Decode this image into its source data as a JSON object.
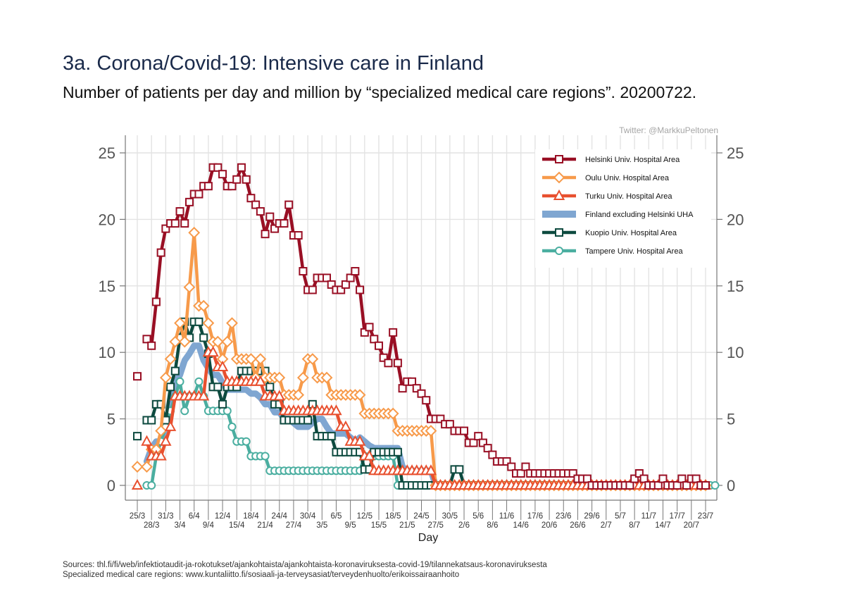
{
  "title": "3a. Corona/Covid-19: Intensive care in Finland",
  "subtitle": "Number of patients per day and million by “specialized medical care regions”. 20200722.",
  "credit": "Twitter: @MarkkuPeltonen",
  "sources": [
    "Sources: thl.fi/fi/web/infektiotaudit-ja-rokotukset/ajankohtaista/ajankohtaista-koronaviruksesta-covid-19/tilannekatsaus-koronaviruksesta",
    "Specialized medical care regions: www.kuntaliitto.fi/sosiaali-ja-terveysasiat/terveydenhuolto/erikoissairaanhoito"
  ],
  "chart_data": {
    "type": "line",
    "title": "3a. Corona/Covid-19: Intensive care in Finland",
    "xlabel": "Day",
    "ylabel": "",
    "ylim": [
      0,
      25
    ],
    "yticks": [
      0,
      5,
      10,
      15,
      20,
      25
    ],
    "grid": true,
    "legend_position": "top-right",
    "x_start": "25/3",
    "num_days": 121,
    "xtick_labels_upper": [
      "25/3",
      "31/3",
      "6/4",
      "12/4",
      "18/4",
      "24/4",
      "30/4",
      "6/5",
      "12/5",
      "18/5",
      "24/5",
      "30/5",
      "5/6",
      "11/6",
      "17/6",
      "23/6",
      "29/6",
      "5/7",
      "11/7",
      "17/7",
      "23/7"
    ],
    "xtick_labels_lower": [
      "28/3",
      "3/4",
      "9/4",
      "15/4",
      "21/4",
      "27/4",
      "3/5",
      "9/5",
      "15/5",
      "21/5",
      "27/5",
      "2/6",
      "8/6",
      "14/6",
      "20/6",
      "26/6",
      "2/7",
      "8/7",
      "14/7",
      "20/7"
    ],
    "series": [
      {
        "name": "Helsinki Univ. Hospital Area",
        "color": "#990f24",
        "marker": "square",
        "values": [
          8.2,
          null,
          11,
          10.5,
          13.8,
          17.5,
          19.3,
          19.7,
          19.7,
          20.6,
          19.7,
          21.3,
          21.9,
          21.9,
          22.5,
          22.5,
          23.9,
          23.9,
          23.4,
          22.5,
          22.5,
          23.0,
          23.9,
          23.0,
          21.6,
          21.1,
          20.6,
          18.9,
          20.2,
          19.3,
          19.7,
          19.7,
          21.1,
          18.8,
          18.8,
          16.1,
          14.7,
          14.7,
          15.6,
          15.6,
          15.6,
          15.1,
          14.7,
          14.7,
          15.1,
          15.6,
          16.1,
          14.7,
          11.5,
          11.9,
          11.0,
          10.5,
          9.6,
          9.2,
          11.5,
          9.2,
          7.3,
          7.8,
          7.8,
          7.3,
          6.9,
          6.4,
          5.0,
          5.0,
          5.0,
          4.6,
          4.6,
          4.1,
          4.1,
          4.1,
          3.2,
          3.2,
          3.7,
          3.2,
          2.8,
          2.3,
          1.8,
          1.8,
          1.8,
          1.4,
          0.9,
          0.9,
          1.4,
          0.9,
          0.9,
          0.9,
          0.9,
          0.9,
          0.9,
          0.9,
          0.9,
          0.9,
          0.9,
          0.5,
          0.5,
          0.5,
          0.0,
          0.0,
          0.0,
          0.0,
          0.0,
          0.0,
          0.0,
          0.0,
          0.0,
          0.5,
          0.9,
          0.5,
          0.0,
          0.0,
          0.0,
          0.5,
          0.0,
          0.0,
          0.0,
          0.5,
          0.0,
          0.5,
          0.5,
          0.0,
          0.0
        ]
      },
      {
        "name": "Oulu Univ. Hospital Area",
        "color": "#f79a4a",
        "marker": "diamond",
        "values": [
          1.4,
          null,
          1.4,
          2.7,
          2.7,
          4.1,
          8.1,
          9.5,
          10.8,
          12.2,
          10.8,
          14.9,
          19.0,
          13.5,
          13.5,
          12.2,
          10.8,
          10.8,
          9.5,
          10.8,
          12.2,
          9.5,
          9.5,
          9.5,
          9.5,
          8.1,
          9.5,
          8.1,
          8.1,
          8.1,
          8.1,
          6.8,
          6.8,
          6.8,
          6.8,
          8.1,
          9.5,
          9.5,
          8.1,
          8.1,
          8.1,
          6.8,
          6.8,
          6.8,
          6.8,
          6.8,
          6.8,
          6.8,
          5.4,
          5.4,
          5.4,
          5.4,
          5.4,
          5.4,
          5.4,
          4.1,
          4.1,
          4.1,
          4.1,
          4.1,
          4.1,
          4.1,
          4.1,
          0.0,
          0.0,
          0.0,
          0.0,
          0.0,
          0.0,
          0.0,
          0.0,
          0.0,
          0.0,
          0.0,
          0.0,
          0.0,
          0.0,
          0.0,
          0.0,
          0.0,
          0.0,
          0.0,
          0.0,
          0.0,
          0.0,
          0.0,
          0.0,
          0.0,
          0.0,
          0.0,
          0.0,
          0.0,
          0.0,
          0.0,
          0.0,
          0.0,
          0.0,
          0.0,
          0.0,
          0.0,
          0.0,
          0.0,
          0.0,
          0.0,
          0.0,
          0.0,
          0.0,
          0.0,
          0.0,
          0.0,
          0.0,
          0.0,
          0.0,
          0.0,
          0.0,
          0.0,
          0.0,
          0.0,
          0.0,
          0.0,
          0.0
        ]
      },
      {
        "name": "Turku Univ. Hospital Area",
        "color": "#e8502f",
        "marker": "triangle",
        "values": [
          0.0,
          null,
          3.3,
          2.2,
          2.2,
          2.2,
          3.3,
          4.4,
          6.7,
          6.7,
          6.7,
          6.7,
          6.7,
          6.7,
          6.7,
          10.0,
          10.0,
          8.9,
          8.9,
          7.8,
          7.8,
          7.8,
          7.8,
          7.8,
          7.8,
          7.8,
          7.8,
          6.7,
          6.7,
          6.7,
          6.7,
          5.6,
          5.6,
          5.6,
          5.6,
          5.6,
          5.6,
          5.6,
          5.6,
          5.6,
          5.6,
          5.6,
          5.6,
          4.4,
          4.4,
          3.3,
          3.3,
          3.3,
          2.2,
          2.2,
          1.1,
          1.1,
          1.1,
          1.1,
          1.1,
          1.1,
          1.1,
          1.1,
          1.1,
          1.1,
          1.1,
          1.1,
          1.1,
          0.0,
          0.0,
          0.0,
          0.0,
          0.0,
          0.0,
          0.0,
          0.0,
          0.0,
          0.0,
          0.0,
          0.0,
          0.0,
          0.0,
          0.0,
          0.0,
          0.0,
          0.0,
          0.0,
          0.0,
          0.0,
          0.0,
          0.0,
          0.0,
          0.0,
          0.0,
          0.0,
          0.0,
          0.0,
          0.0,
          0.0,
          0.0,
          0.0,
          0.0,
          0.0,
          0.0,
          0.0,
          0.0,
          0.0,
          0.0,
          0.0,
          0.0,
          0.0,
          0.0,
          0.0,
          0.0,
          0.0,
          0.0,
          0.0,
          0.0,
          0.0,
          0.0,
          0.0,
          0.0,
          0.0,
          0.0,
          0.0,
          0.0
        ]
      },
      {
        "name": "Finland excluding Helsinki UHA",
        "color": "#7fa6d1",
        "marker": "none",
        "values": [
          0.3,
          null,
          1.8,
          2.8,
          3.3,
          3.3,
          3.9,
          5.8,
          7.7,
          8.3,
          9.4,
          9.9,
          10.5,
          10.5,
          9.4,
          8.8,
          8.3,
          8.3,
          7.7,
          7.2,
          7.2,
          7.2,
          7.2,
          7.2,
          6.9,
          6.9,
          6.6,
          6.1,
          6.1,
          5.5,
          5.5,
          5.0,
          5.0,
          4.7,
          4.4,
          4.4,
          4.4,
          4.7,
          5.0,
          5.0,
          4.4,
          3.9,
          3.9,
          3.9,
          3.9,
          3.6,
          3.3,
          3.6,
          3.3,
          3.0,
          2.8,
          2.8,
          2.8,
          2.8,
          2.8,
          2.8,
          1.4,
          1.1,
          1.1,
          1.1,
          1.1,
          1.1,
          1.1,
          0.0,
          0.0,
          0.0,
          0.0,
          0.0,
          0.0,
          0.0,
          0.0,
          0.0,
          0.0,
          0.0,
          0.0,
          0.0,
          0.0,
          0.0,
          0.0,
          0.0,
          0.0,
          0.0,
          0.0,
          0.0,
          0.0,
          0.0,
          0.0,
          0.0,
          0.0,
          0.0,
          0.0,
          0.0,
          0.0,
          0.0,
          0.0,
          0.0,
          0.0,
          0.0,
          0.0,
          0.0,
          0.0,
          0.0,
          0.0,
          0.0,
          0.0,
          0.0,
          0.0,
          0.0,
          0.0,
          0.0,
          0.0,
          0.0,
          0.0,
          0.0,
          0.0,
          0.0,
          0.0,
          0.0,
          0.0,
          0.0,
          0.0
        ]
      },
      {
        "name": "Kuopio Univ. Hospital Area",
        "color": "#0d4a3f",
        "marker": "square",
        "values": [
          3.7,
          null,
          4.9,
          4.9,
          6.1,
          6.1,
          4.9,
          7.4,
          8.6,
          11.1,
          12.3,
          11.1,
          12.3,
          12.3,
          11.1,
          9.9,
          7.4,
          7.4,
          6.1,
          7.4,
          7.4,
          7.4,
          8.6,
          8.6,
          8.6,
          8.6,
          8.6,
          8.6,
          7.4,
          6.1,
          6.1,
          4.9,
          4.9,
          4.9,
          4.9,
          4.9,
          4.9,
          6.1,
          3.7,
          3.7,
          3.7,
          3.7,
          2.5,
          2.5,
          2.5,
          2.5,
          2.5,
          2.5,
          1.2,
          1.2,
          2.5,
          2.5,
          2.5,
          2.5,
          2.5,
          2.5,
          0.0,
          0.0,
          0.0,
          0.0,
          0.0,
          0.0,
          0.0,
          0.0,
          0.0,
          0.0,
          0.0,
          1.2,
          1.2,
          0.0,
          0.0,
          0.0,
          0.0,
          0.0,
          0.0,
          0.0,
          0.0,
          0.0,
          0.0,
          0.0,
          0.0,
          0.0,
          0.0,
          0.0,
          0.0,
          0.0,
          0.0,
          0.0,
          0.0,
          0.0,
          0.0,
          0.0,
          0.0,
          0.0,
          0.0,
          0.0,
          0.0,
          0.0,
          0.0,
          0.0,
          0.0,
          0.0,
          0.0,
          0.0,
          0.0,
          0.0,
          0.0,
          0.0,
          0.0,
          0.0,
          0.0,
          0.0,
          0.0,
          0.0,
          0.0,
          0.0,
          0.0,
          0.0,
          0.0,
          0.0,
          0.0
        ]
      },
      {
        "name": "Tampere Univ. Hospital Area",
        "color": "#4aaea0",
        "marker": "circle",
        "values": [
          null,
          null,
          0.0,
          0.0,
          2.2,
          3.3,
          4.4,
          5.6,
          6.7,
          7.8,
          5.6,
          6.7,
          6.7,
          7.8,
          6.7,
          5.6,
          5.6,
          5.6,
          5.6,
          5.6,
          4.4,
          3.3,
          3.3,
          3.3,
          2.2,
          2.2,
          2.2,
          2.2,
          1.1,
          1.1,
          1.1,
          1.1,
          1.1,
          1.1,
          1.1,
          1.1,
          1.1,
          1.1,
          1.1,
          1.1,
          1.1,
          1.1,
          1.1,
          1.1,
          1.1,
          1.1,
          1.1,
          1.1,
          2.2,
          2.2,
          2.2,
          2.2,
          2.2,
          2.2,
          2.2,
          0.0,
          0.0,
          0.0,
          0.0,
          0.0,
          0.0,
          0.0,
          0.0,
          0.0,
          0.0,
          0.0,
          0.0,
          0.0,
          0.0,
          0.0,
          0.0,
          0.0,
          0.0,
          0.0,
          0.0,
          0.0,
          0.0,
          0.0,
          0.0,
          0.0,
          0.0,
          0.0,
          0.0,
          0.0,
          0.0,
          0.0,
          0.0,
          0.0,
          0.0,
          0.0,
          0.0,
          0.0,
          0.0,
          0.0,
          0.0,
          0.0,
          0.0,
          0.0,
          0.0,
          0.0,
          0.0,
          0.0,
          0.0,
          0.0,
          0.0,
          0.0,
          0.0,
          0.0,
          0.0,
          0.0,
          0.0,
          0.0,
          0.0,
          0.0,
          0.0,
          0.0,
          0.0,
          0.0,
          0.0,
          0.0,
          0.0,
          0.0,
          0.0
        ]
      }
    ]
  }
}
